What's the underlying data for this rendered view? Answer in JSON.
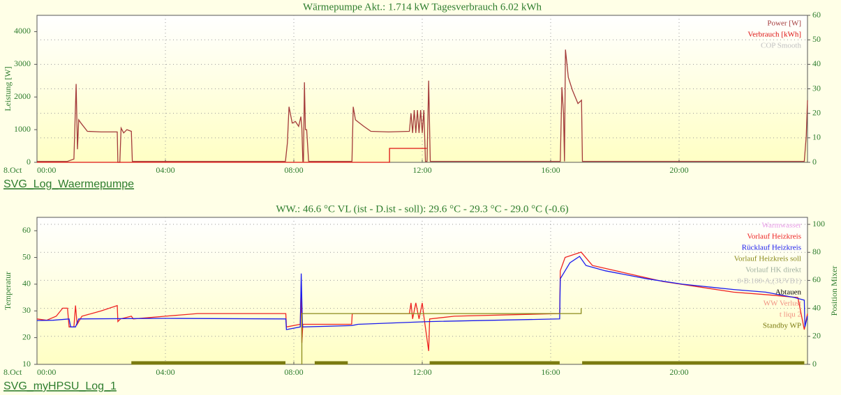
{
  "chart_data": [
    {
      "type": "line",
      "title": "Wärmepumpe Akt.: 1.714 kW Tagesverbrauch 6.02 kWh",
      "caption": "SVG_Log_Waermepumpe",
      "ylabel": "Leistung [W]",
      "x_date_label": "8.Oct",
      "xlim": [
        0,
        24
      ],
      "xticks": [
        {
          "value": 0,
          "label": "00:00"
        },
        {
          "value": 4,
          "label": "04:00"
        },
        {
          "value": 8,
          "label": "08:00"
        },
        {
          "value": 12,
          "label": "12:00"
        },
        {
          "value": 16,
          "label": "16:00"
        },
        {
          "value": 20,
          "label": "20:00"
        }
      ],
      "ylim": [
        0,
        4500
      ],
      "yticks": [
        0,
        1000,
        2000,
        3000,
        4000
      ],
      "y2lim": [
        0,
        60
      ],
      "y2ticks": [
        0,
        10,
        20,
        30,
        40,
        50,
        60
      ],
      "grid": "y2",
      "legend": "top-right",
      "series": [
        {
          "name": "Power [W]",
          "color": "#a33a3a",
          "x": [
            0,
            0.95,
            1.15,
            1.22,
            1.26,
            1.3,
            1.37,
            1.57,
            2.0,
            2.5,
            2.52,
            2.58,
            2.62,
            2.7,
            2.8,
            2.94,
            2.97,
            7.74,
            7.8,
            7.85,
            7.95,
            8.05,
            8.15,
            8.22,
            8.25,
            8.28,
            8.3,
            8.33,
            8.36,
            8.4,
            8.46,
            9.81,
            9.85,
            9.92,
            10.05,
            10.18,
            10.4,
            10.95,
            11.6,
            11.65,
            11.7,
            11.75,
            11.8,
            11.85,
            11.9,
            11.95,
            12.0,
            12.05,
            12.1,
            12.15,
            12.2,
            12.25,
            16.3,
            16.35,
            16.4,
            16.43,
            16.46,
            16.55,
            16.68,
            16.85,
            16.96,
            16.99,
            23.9,
            23.96,
            24
          ],
          "values": [
            30,
            30,
            100,
            2400,
            400,
            1300,
            1200,
            950,
            930,
            930,
            0,
            0,
            1050,
            900,
            1000,
            950,
            30,
            30,
            600,
            1700,
            1200,
            1250,
            1100,
            1400,
            1050,
            30,
            30,
            2450,
            1000,
            1000,
            30,
            30,
            1700,
            1300,
            1200,
            1100,
            950,
            930,
            950,
            1500,
            900,
            1600,
            900,
            1600,
            900,
            1600,
            900,
            1600,
            30,
            30,
            2500,
            30,
            30,
            2300,
            1500,
            30,
            3450,
            2600,
            2200,
            1800,
            1900,
            30,
            30,
            800,
            1900
          ]
        },
        {
          "name": "Verbrauch [kWh]",
          "color": "#dd1111",
          "axis": "y2",
          "x": [
            0,
            10.98,
            10.98,
            12.14
          ],
          "values": [
            0,
            0,
            5.7,
            5.7
          ]
        },
        {
          "name": "COP Smooth",
          "color": "#c0c0c0",
          "axis": "y2",
          "x": [],
          "values": []
        }
      ]
    },
    {
      "type": "line",
      "title": "WW.: 46.6 °C VL (ist - D.ist - soll): 29.6 °C - 29.3 °C - 29.0 °C (-0.6)",
      "caption": "SVG_myHPSU_Log_1",
      "ylabel": "Temperatur",
      "y2label": "Position Mixer",
      "x_date_label": "8.Oct",
      "xlim": [
        0,
        24
      ],
      "xticks": [
        {
          "value": 0,
          "label": "00:00"
        },
        {
          "value": 4,
          "label": "04:00"
        },
        {
          "value": 8,
          "label": "08:00"
        },
        {
          "value": 12,
          "label": "12:00"
        },
        {
          "value": 16,
          "label": "16:00"
        },
        {
          "value": 20,
          "label": "20:00"
        }
      ],
      "ylim": [
        10,
        65
      ],
      "yticks": [
        10,
        20,
        30,
        40,
        50,
        60
      ],
      "y2lim": [
        0,
        105
      ],
      "y2ticks": [
        0,
        20,
        40,
        60,
        80,
        100
      ],
      "grid": "y2",
      "legend": "top-right",
      "series": [
        {
          "name": "Warmwasser",
          "color": "#e89ae8",
          "x": [],
          "values": []
        },
        {
          "name": "Vorlauf Heizkreis",
          "color": "#ee2222",
          "x": [
            0,
            0.3,
            0.6,
            0.8,
            0.95,
            1.0,
            1.15,
            1.2,
            1.25,
            1.4,
            1.7,
            2.0,
            2.5,
            2.52,
            2.6,
            2.94,
            3.0,
            4.0,
            5.0,
            7.75,
            7.77,
            8.2,
            8.23,
            8.25,
            8.28,
            9.8,
            9.82,
            11.6,
            11.65,
            11.7,
            11.8,
            11.9,
            12.0,
            12.05,
            12.2,
            12.23,
            13.0,
            16.28,
            16.3,
            16.45,
            16.95,
            17.3,
            18.4,
            19.5,
            20.6,
            21.7,
            22.8,
            23.7,
            23.9,
            24
          ],
          "values": [
            27,
            26.5,
            28,
            31,
            31,
            24,
            24,
            32,
            25,
            28,
            29,
            30,
            32,
            26,
            27,
            28,
            27,
            28,
            29,
            29,
            24,
            25,
            40,
            18,
            25,
            25,
            29,
            29,
            33,
            27,
            33,
            27,
            33,
            28,
            15,
            27,
            28,
            29,
            45,
            50,
            52,
            47,
            44,
            41,
            39,
            37,
            36,
            35,
            23,
            29
          ]
        },
        {
          "name": "Rücklauf Heizkreis",
          "color": "#1a1aee",
          "x": [
            0,
            0.5,
            1.0,
            1.05,
            1.2,
            1.3,
            4,
            7.75,
            7.77,
            8.2,
            8.23,
            8.27,
            9.8,
            10,
            12.2,
            16.28,
            16.3,
            16.6,
            16.9,
            17.1,
            17.7,
            19.0,
            20.1,
            21.7,
            22.7,
            23.6,
            23.9,
            23.92,
            24
          ],
          "values": [
            26.4,
            26.5,
            27,
            24,
            24,
            27,
            27.2,
            27,
            23,
            24,
            44,
            24,
            24.5,
            25,
            26,
            27,
            42,
            48,
            50.4,
            47,
            45,
            42,
            40,
            38,
            37,
            35,
            34,
            24,
            28
          ]
        },
        {
          "name": "Vorlauf Heizkreis soll",
          "color": "#8a8a1a",
          "x": [
            8.25,
            8.25,
            16.95,
            16.95
          ],
          "values": [
            10,
            29,
            29,
            31
          ]
        },
        {
          "name": "Vorlauf HK direkt",
          "color": "#9fb09f",
          "x": [],
          "values": []
        },
        {
          "name": "0-B.100-A,(3UVB1)",
          "color": "#c0c0c0",
          "axis": "y2",
          "x": [],
          "values": []
        },
        {
          "name": "Abtauen",
          "color": "#000000",
          "axis": "y2",
          "x": [],
          "values": []
        },
        {
          "name": "WW Verlust",
          "color": "#f09080",
          "x": [],
          "values": []
        },
        {
          "name": "t liqu 2",
          "color": "#f09080",
          "x": [],
          "values": []
        },
        {
          "name": "Standby WP",
          "color": "#7a7a10",
          "axis": "y2",
          "stroke_width": 5,
          "x": [
            2.94,
            7.74,
            7.74,
            8.65,
            9.68,
            9.68,
            12.23,
            16.28,
            16.28,
            16.98,
            23.9
          ],
          "values": [
            1,
            1,
            null,
            1,
            1,
            null,
            1,
            1,
            null,
            1,
            1
          ]
        }
      ]
    }
  ]
}
